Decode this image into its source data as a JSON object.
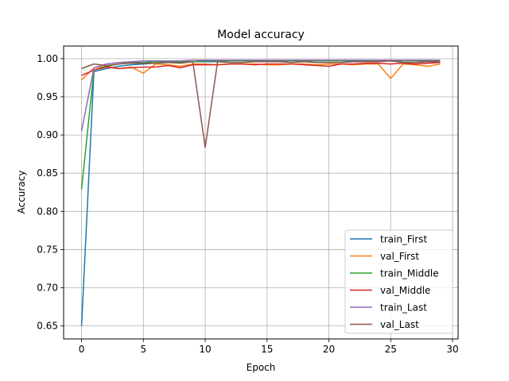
{
  "chart_data": {
    "type": "line",
    "title": "Model accuracy",
    "xlabel": "Epoch",
    "ylabel": "Accuracy",
    "xlim": [
      -1.45,
      30.45
    ],
    "ylim": [
      0.633,
      1.0165
    ],
    "x_ticks": [
      0,
      5,
      10,
      15,
      20,
      25,
      30
    ],
    "y_ticks": [
      0.65,
      0.7,
      0.75,
      0.8,
      0.85,
      0.9,
      0.95,
      1.0
    ],
    "x_tick_labels": [
      "0",
      "5",
      "10",
      "15",
      "20",
      "25",
      "30"
    ],
    "y_tick_labels": [
      "0.65",
      "0.70",
      "0.75",
      "0.80",
      "0.85",
      "0.90",
      "0.95",
      "1.00"
    ],
    "grid": true,
    "legend_position": "lower-right",
    "x": [
      0,
      1,
      2,
      3,
      4,
      5,
      6,
      7,
      8,
      9,
      10,
      11,
      12,
      13,
      14,
      15,
      16,
      17,
      18,
      19,
      20,
      21,
      22,
      23,
      24,
      25,
      26,
      27,
      28,
      29
    ],
    "series": [
      {
        "name": "train_First",
        "color": "#1f77b4",
        "values": [
          0.65,
          0.983,
          0.987,
          0.99,
          0.992,
          0.993,
          0.994,
          0.995,
          0.995,
          0.996,
          0.996,
          0.996,
          0.997,
          0.997,
          0.997,
          0.997,
          0.997,
          0.997,
          0.997,
          0.998,
          0.998,
          0.998,
          0.998,
          0.998,
          0.998,
          0.998,
          0.998,
          0.998,
          0.998,
          0.998
        ]
      },
      {
        "name": "val_First",
        "color": "#ff7f0e",
        "values": [
          0.972,
          0.988,
          0.99,
          0.987,
          0.989,
          0.981,
          0.993,
          0.992,
          0.99,
          0.993,
          0.993,
          0.992,
          0.993,
          0.993,
          0.993,
          0.992,
          0.992,
          0.993,
          0.993,
          0.992,
          0.993,
          0.993,
          0.992,
          0.993,
          0.993,
          0.974,
          0.993,
          0.992,
          0.99,
          0.993
        ]
      },
      {
        "name": "train_Middle",
        "color": "#2ca02c",
        "values": [
          0.829,
          0.985,
          0.99,
          0.993,
          0.995,
          0.995,
          0.996,
          0.996,
          0.996,
          0.996,
          0.997,
          0.997,
          0.997,
          0.997,
          0.997,
          0.997,
          0.997,
          0.997,
          0.997,
          0.997,
          0.997,
          0.997,
          0.997,
          0.997,
          0.997,
          0.997,
          0.997,
          0.997,
          0.997,
          0.997
        ]
      },
      {
        "name": "val_Middle",
        "color": "#d62728",
        "values": [
          0.978,
          0.985,
          0.989,
          0.987,
          0.988,
          0.989,
          0.989,
          0.991,
          0.988,
          0.992,
          0.992,
          0.992,
          0.993,
          0.993,
          0.992,
          0.993,
          0.993,
          0.993,
          0.992,
          0.991,
          0.99,
          0.993,
          0.993,
          0.994,
          0.994,
          0.993,
          0.994,
          0.993,
          0.994,
          0.995
        ]
      },
      {
        "name": "train_Last",
        "color": "#9467bd",
        "values": [
          0.905,
          0.988,
          0.993,
          0.995,
          0.996,
          0.997,
          0.997,
          0.997,
          0.997,
          0.998,
          0.998,
          0.998,
          0.998,
          0.998,
          0.998,
          0.998,
          0.998,
          0.998,
          0.998,
          0.998,
          0.998,
          0.998,
          0.998,
          0.998,
          0.998,
          0.998,
          0.998,
          0.998,
          0.998,
          0.998
        ]
      },
      {
        "name": "val_Last",
        "color": "#8c564b",
        "values": [
          0.987,
          0.993,
          0.991,
          0.993,
          0.994,
          0.994,
          0.994,
          0.995,
          0.994,
          0.996,
          0.884,
          0.996,
          0.995,
          0.995,
          0.996,
          0.996,
          0.996,
          0.995,
          0.996,
          0.995,
          0.995,
          0.995,
          0.996,
          0.996,
          0.996,
          0.997,
          0.995,
          0.995,
          0.996,
          0.996
        ]
      }
    ]
  }
}
